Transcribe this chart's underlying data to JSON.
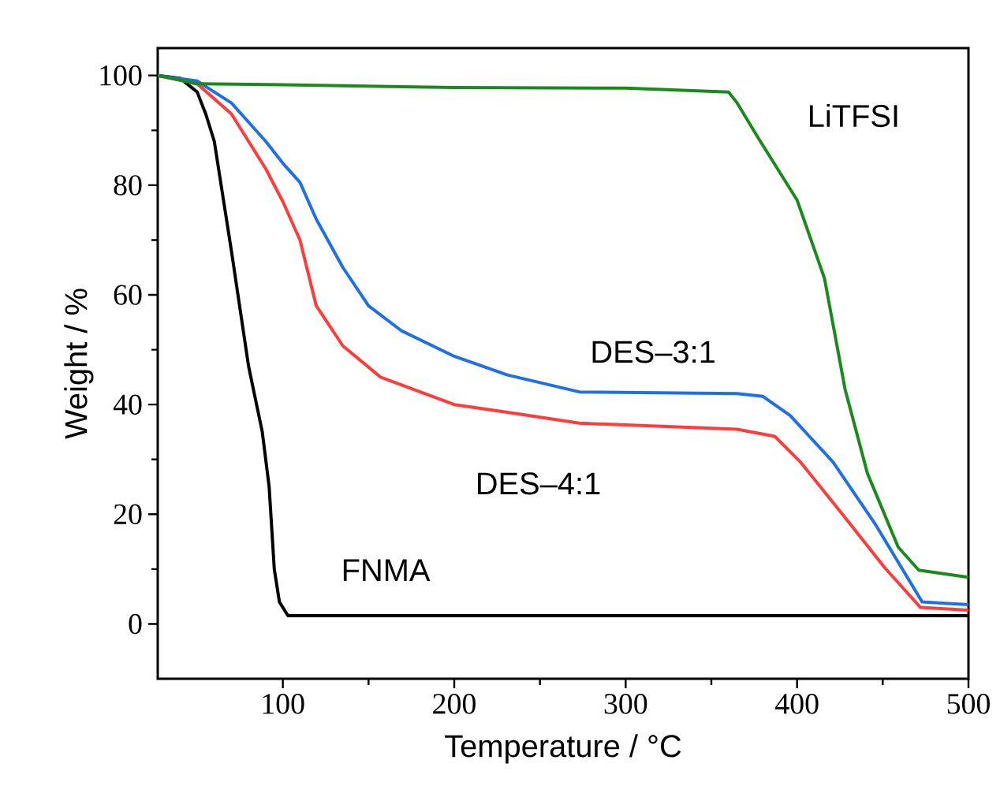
{
  "chart_data": {
    "type": "line",
    "xlabel": "Temperature / °C",
    "ylabel": "Weight / %",
    "xlim": [
      27,
      500
    ],
    "ylim": [
      -10,
      105
    ],
    "xticks": [
      100,
      200,
      300,
      400,
      500
    ],
    "yticks": [
      0,
      20,
      40,
      60,
      80,
      100
    ],
    "grid": false,
    "marker": "none",
    "line_style": "solid",
    "series": [
      {
        "name": "FNMA",
        "color": "#000000",
        "x": [
          27,
          40,
          50,
          55,
          60,
          70,
          80,
          88,
          92,
          95,
          98,
          103,
          200,
          300,
          400,
          500
        ],
        "values": [
          100,
          99.5,
          97,
          93,
          88,
          68,
          47,
          35,
          25,
          10,
          4,
          1.5,
          1.5,
          1.5,
          1.5,
          1.5
        ]
      },
      {
        "name": "DES–4:1",
        "color": "#ff3b3b",
        "x": [
          27,
          50,
          70,
          90,
          100,
          110,
          119.5,
          135,
          157,
          200,
          231,
          273,
          365,
          387,
          402,
          427,
          451,
          472,
          500
        ],
        "values": [
          100,
          98.5,
          93,
          83,
          77,
          70,
          58,
          50.7,
          45,
          40,
          38.6,
          36.6,
          35.5,
          34.2,
          29.5,
          19.8,
          10.3,
          3,
          2.5
        ]
      },
      {
        "name": "DES–3:1",
        "color": "#1f6fe6",
        "x": [
          27,
          50,
          70,
          90,
          100,
          110,
          119.5,
          135,
          150,
          169,
          200,
          231,
          273,
          365,
          380,
          396,
          421,
          446,
          473,
          500
        ],
        "values": [
          100,
          99,
          95,
          88,
          84,
          80.5,
          73.8,
          65,
          58,
          53.5,
          48.8,
          45.4,
          42.3,
          42,
          41.5,
          38,
          29.5,
          18,
          4,
          3.5
        ]
      },
      {
        "name": "LiTFSI",
        "color": "#1a8a1a",
        "x": [
          27,
          50,
          100,
          200,
          300,
          360,
          365,
          377,
          400,
          416,
          428,
          441,
          459,
          471,
          500
        ],
        "values": [
          100,
          98.5,
          98.3,
          97.8,
          97.7,
          97,
          95,
          88.8,
          77.3,
          63,
          42.8,
          27.5,
          14,
          9.8,
          8.5
        ]
      }
    ]
  }
}
